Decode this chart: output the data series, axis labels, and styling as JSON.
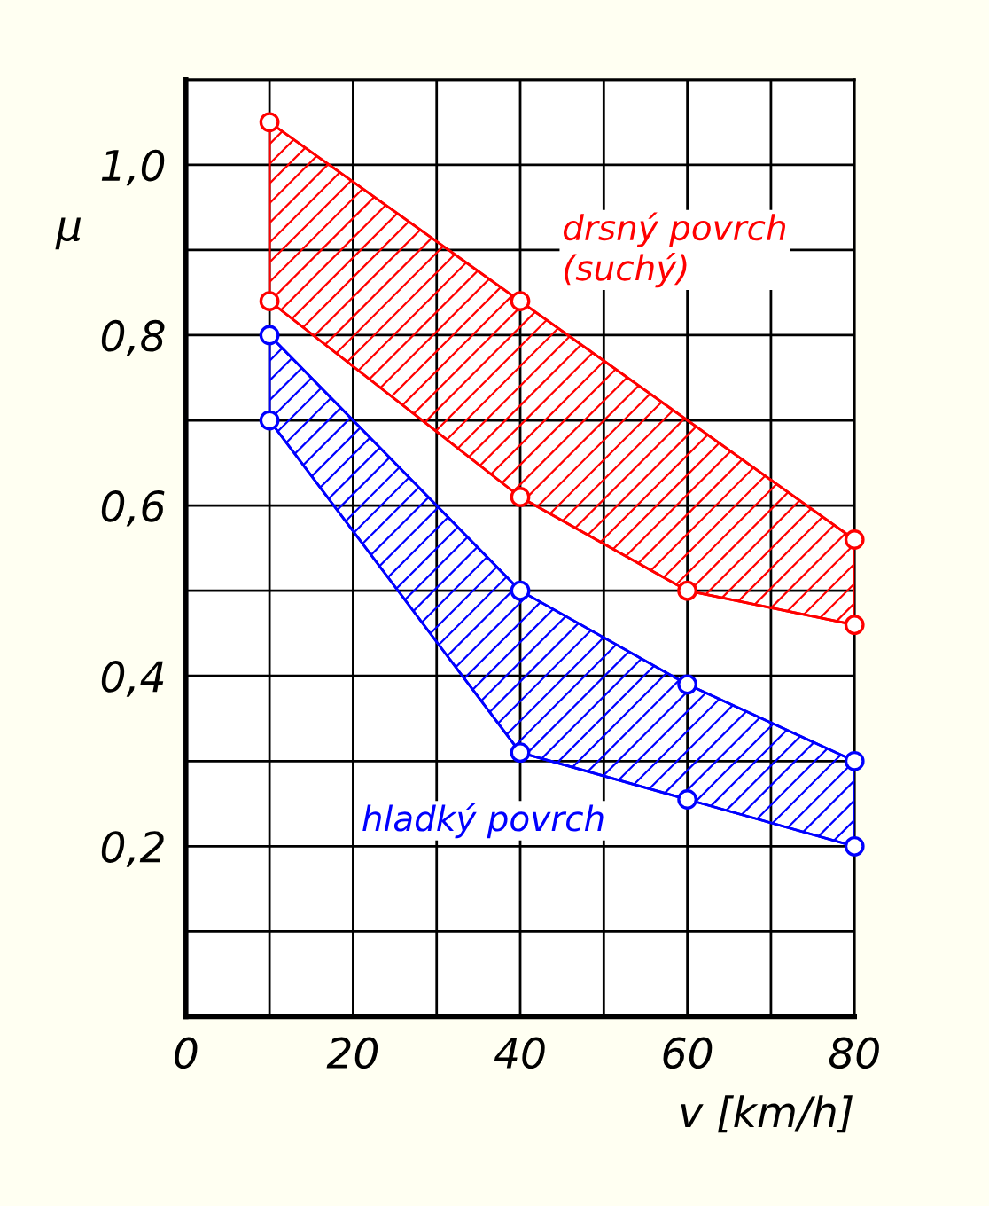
{
  "chart_data": {
    "type": "line",
    "xlabel": "v [km/h]",
    "ylabel": "μ",
    "xlim": [
      0,
      80
    ],
    "ylim": [
      0,
      1.1
    ],
    "xticks": [
      0,
      {
        "value": 10,
        "label": null
      },
      20,
      {
        "value": 30,
        "label": null
      },
      40,
      {
        "value": 50,
        "label": null
      },
      60,
      {
        "value": 70,
        "label": null
      },
      80
    ],
    "yticks": [
      {
        "value": 0,
        "label": null
      },
      {
        "value": 0.1,
        "label": null
      },
      {
        "value": 0.2,
        "label": "0,2"
      },
      {
        "value": 0.3,
        "label": null
      },
      {
        "value": 0.4,
        "label": "0,4"
      },
      {
        "value": 0.5,
        "label": null
      },
      {
        "value": 0.6,
        "label": "0,6"
      },
      {
        "value": 0.7,
        "label": null
      },
      {
        "value": 0.8,
        "label": "0,8"
      },
      {
        "value": 0.9,
        "label": null
      },
      {
        "value": 1.0,
        "label": "1,0"
      },
      {
        "value": 1.1,
        "label": null
      }
    ],
    "grid": true,
    "marker": "circle",
    "series": [
      {
        "name": "drsný povrch\n(suchý)",
        "color": "#ff0000",
        "x": [
          10,
          40,
          80
        ],
        "values": [
          1.05,
          0.84,
          0.56
        ]
      },
      {
        "color": "#ff0000",
        "x": [
          10,
          40,
          60,
          80
        ],
        "values": [
          0.84,
          0.61,
          0.5,
          0.46
        ]
      },
      {
        "name": "hladký povrch",
        "color": "#0000ff",
        "x": [
          10,
          40,
          60,
          80
        ],
        "values": [
          0.8,
          0.5,
          0.39,
          0.3
        ]
      },
      {
        "color": "#0000ff",
        "x": [
          10,
          40,
          60,
          80
        ],
        "values": [
          0.7,
          0.31,
          0.255,
          0.2
        ]
      }
    ]
  }
}
